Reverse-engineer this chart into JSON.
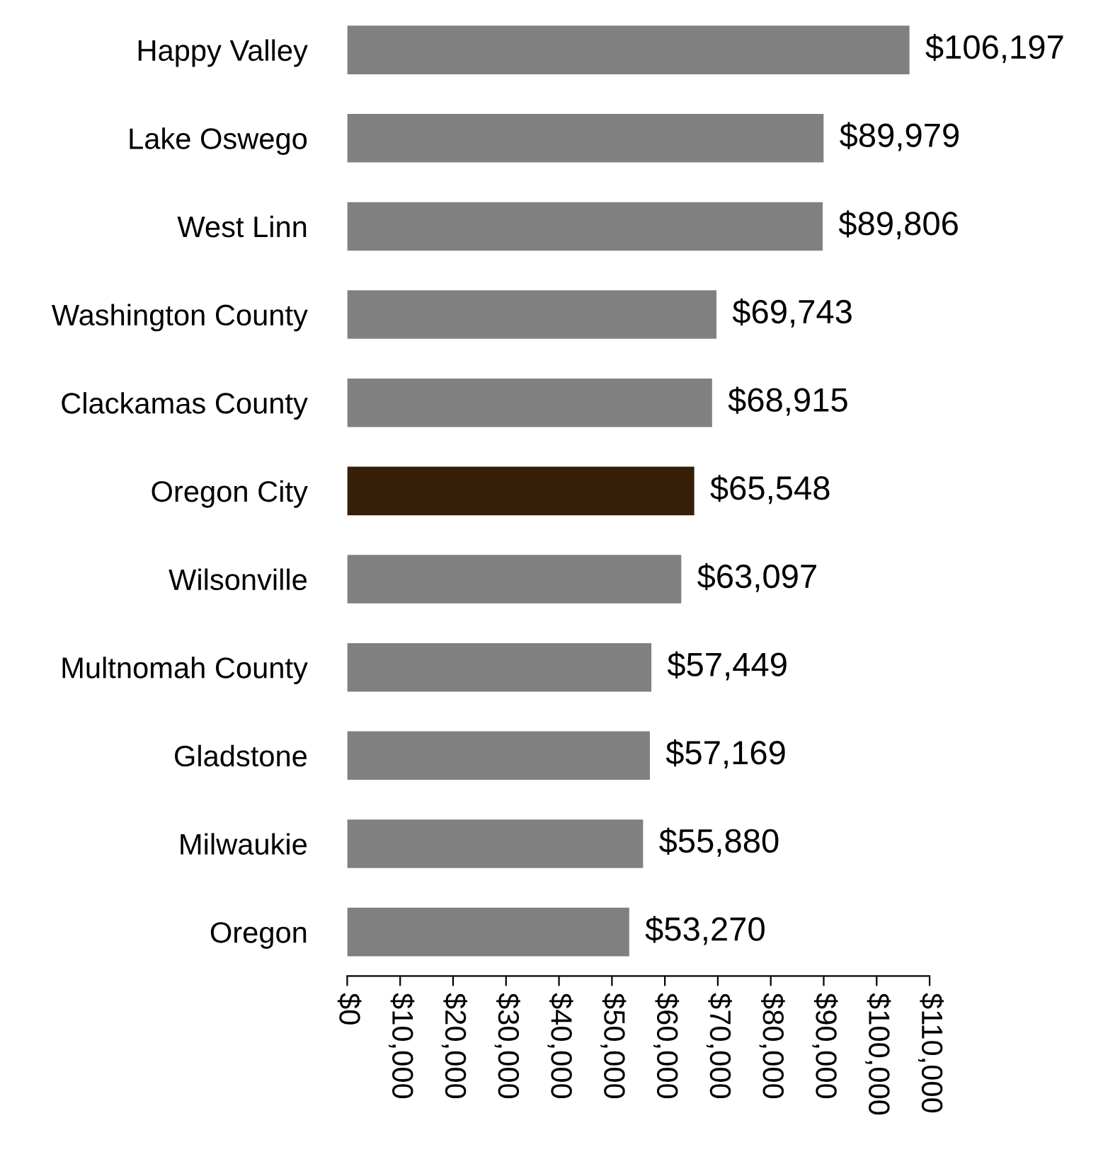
{
  "chart_data": {
    "type": "bar",
    "orientation": "horizontal",
    "categories": [
      "Happy Valley",
      "Lake Oswego",
      "West Linn",
      "Washington County",
      "Clackamas County",
      "Oregon City",
      "Wilsonville",
      "Multnomah County",
      "Gladstone",
      "Milwaukie",
      "Oregon"
    ],
    "values": [
      106197,
      89979,
      89806,
      69743,
      68915,
      65548,
      63097,
      57449,
      57169,
      55880,
      53270
    ],
    "colors": [
      "#808080",
      "#808080",
      "#808080",
      "#808080",
      "#808080",
      "#361e08",
      "#808080",
      "#808080",
      "#808080",
      "#808080",
      "#808080"
    ],
    "value_labels": [
      "$106,197",
      "$89,979",
      "$89,806",
      "$69,743",
      "$68,915",
      "$65,548",
      "$63,097",
      "$57,449",
      "$57,169",
      "$55,880",
      "$53,270"
    ],
    "xlim": [
      0,
      110000
    ],
    "xticks": [
      {
        "value": 0,
        "label": "$0"
      },
      {
        "value": 10000,
        "label": "$10,000"
      },
      {
        "value": 20000,
        "label": "$20,000"
      },
      {
        "value": 30000,
        "label": "$30,000"
      },
      {
        "value": 40000,
        "label": "$40,000"
      },
      {
        "value": 50000,
        "label": "$50,000"
      },
      {
        "value": 60000,
        "label": "$60,000"
      },
      {
        "value": 70000,
        "label": "$70,000"
      },
      {
        "value": 80000,
        "label": "$80,000"
      },
      {
        "value": 90000,
        "label": "$90,000"
      },
      {
        "value": 100000,
        "label": "$100,000"
      },
      {
        "value": 110000,
        "label": "$110,000"
      }
    ],
    "grid": false,
    "legend": false
  }
}
